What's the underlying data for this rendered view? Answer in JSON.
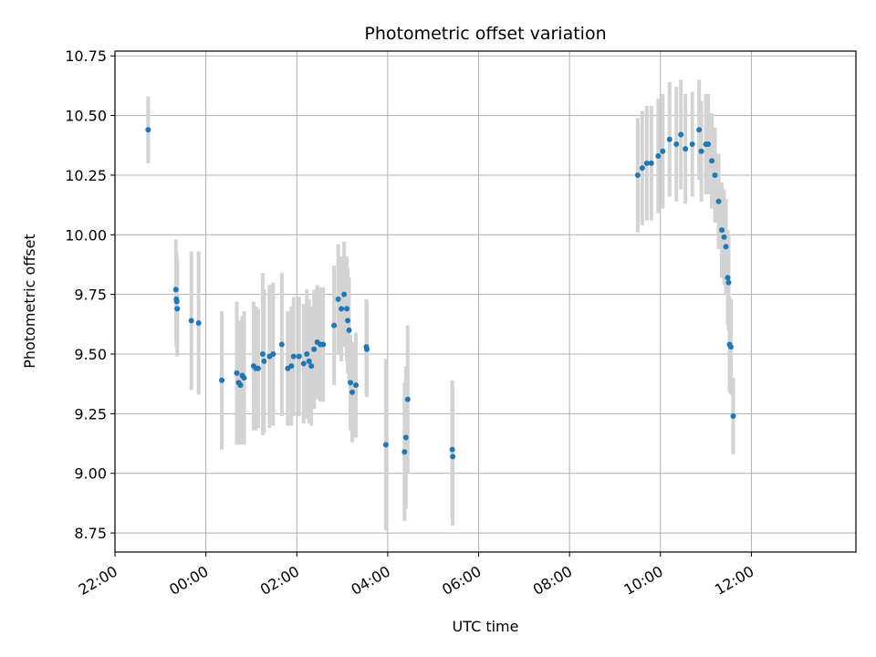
{
  "chart_data": {
    "type": "scatter",
    "title": "Photometric offset variation",
    "xlabel": "UTC time",
    "ylabel": "Photometric offset",
    "x_ticks": [
      "22:00",
      "00:00",
      "02:00",
      "04:00",
      "06:00",
      "08:00",
      "10:00",
      "12:00"
    ],
    "y_ticks": [
      "8.75",
      "9.00",
      "9.25",
      "9.50",
      "9.75",
      "10.00",
      "10.25",
      "10.50",
      "10.75"
    ],
    "xlim": [
      -2.0,
      14.3
    ],
    "ylim": [
      8.67,
      10.77
    ],
    "grid": true,
    "colors": {
      "point": "#1f77b4",
      "errorbar": "#d3d3d3",
      "grid": "#b0b0b0"
    },
    "series": [
      {
        "x": [
          -1.27,
          -0.66,
          -0.65,
          -0.64,
          -0.63,
          -0.32,
          -0.16,
          0.35,
          0.68,
          0.72,
          0.76,
          0.8,
          0.84,
          1.05,
          1.1,
          1.15,
          1.25,
          1.28,
          1.4,
          1.48,
          1.67,
          1.8,
          1.88,
          1.93,
          2.05,
          2.15,
          2.22,
          2.27,
          2.32,
          2.38,
          2.45,
          2.52,
          2.58,
          2.82,
          2.91,
          2.98,
          3.04,
          3.1,
          3.12,
          3.15,
          3.18,
          3.22,
          3.3,
          3.53,
          3.54,
          3.96,
          4.37,
          4.4,
          4.44,
          5.42,
          5.43,
          9.5,
          9.6,
          9.7,
          9.8,
          9.95,
          10.05,
          10.2,
          10.35,
          10.45,
          10.55,
          10.7,
          10.85,
          10.9,
          11.0,
          11.05,
          11.13,
          11.2,
          11.28,
          11.35,
          11.4,
          11.44,
          11.48,
          11.5,
          11.52,
          11.55,
          11.6
        ],
        "y": [
          10.44,
          9.77,
          9.73,
          9.72,
          9.69,
          9.64,
          9.63,
          9.39,
          9.42,
          9.38,
          9.37,
          9.41,
          9.4,
          9.45,
          9.44,
          9.44,
          9.5,
          9.47,
          9.49,
          9.5,
          9.54,
          9.44,
          9.45,
          9.49,
          9.49,
          9.46,
          9.5,
          9.47,
          9.45,
          9.52,
          9.55,
          9.54,
          9.54,
          9.62,
          9.73,
          9.69,
          9.75,
          9.69,
          9.64,
          9.6,
          9.38,
          9.34,
          9.37,
          9.53,
          9.52,
          9.12,
          9.09,
          9.15,
          9.31,
          9.1,
          9.07,
          10.25,
          10.28,
          10.3,
          10.3,
          10.33,
          10.35,
          10.4,
          10.38,
          10.42,
          10.36,
          10.38,
          10.44,
          10.35,
          10.38,
          10.38,
          10.31,
          10.25,
          10.14,
          10.02,
          9.99,
          9.95,
          9.82,
          9.8,
          9.54,
          9.53,
          9.24
        ],
        "err": [
          0.14,
          0.21,
          0.2,
          0.2,
          0.2,
          0.29,
          0.3,
          0.29,
          0.3,
          0.26,
          0.25,
          0.25,
          0.28,
          0.27,
          0.26,
          0.25,
          0.34,
          0.3,
          0.3,
          0.3,
          0.3,
          0.24,
          0.25,
          0.25,
          0.25,
          0.25,
          0.27,
          0.26,
          0.25,
          0.25,
          0.24,
          0.24,
          0.24,
          0.25,
          0.23,
          0.22,
          0.22,
          0.22,
          0.22,
          0.22,
          0.2,
          0.21,
          0.22,
          0.2,
          0.2,
          0.36,
          0.29,
          0.3,
          0.31,
          0.29,
          0.29,
          0.24,
          0.24,
          0.24,
          0.24,
          0.24,
          0.24,
          0.24,
          0.24,
          0.23,
          0.23,
          0.22,
          0.21,
          0.21,
          0.21,
          0.21,
          0.2,
          0.2,
          0.2,
          0.2,
          0.2,
          0.2,
          0.2,
          0.2,
          0.2,
          0.2,
          0.16
        ]
      }
    ]
  }
}
